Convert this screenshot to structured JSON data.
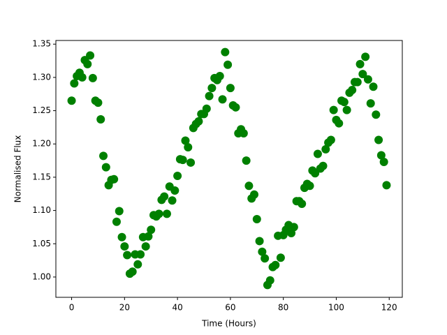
{
  "chart_data": {
    "type": "scatter",
    "x_label": "Time (Hours)",
    "y_label": "Normalised Flux",
    "x": [
      0,
      1,
      2,
      3,
      4,
      5,
      6,
      7,
      8,
      9,
      10,
      11,
      12,
      13,
      14,
      15,
      16,
      17,
      18,
      19,
      20,
      21,
      22,
      23,
      24,
      25,
      26,
      27,
      28,
      29,
      30,
      31,
      32,
      33,
      34,
      35,
      36,
      37,
      38,
      39,
      40,
      41,
      42,
      43,
      44,
      45,
      46,
      47,
      48,
      49,
      50,
      51,
      52,
      53,
      54,
      55,
      56,
      57,
      58,
      59,
      60,
      61,
      62,
      63,
      64,
      65,
      66,
      67,
      68,
      69,
      70,
      71,
      72,
      73,
      74,
      75,
      76,
      77,
      78,
      79,
      80,
      81,
      82,
      83,
      84,
      85,
      86,
      87,
      88,
      89,
      90,
      91,
      92,
      93,
      94,
      95,
      96,
      97,
      98,
      99,
      100,
      101,
      102,
      103,
      104,
      105,
      106,
      107,
      108,
      109,
      110,
      111,
      112,
      113,
      114,
      115,
      116,
      117,
      118,
      119
    ],
    "values": [
      1.265,
      1.291,
      1.302,
      1.307,
      1.3,
      1.326,
      1.32,
      1.333,
      1.299,
      1.265,
      1.262,
      1.237,
      1.182,
      1.165,
      1.138,
      1.146,
      1.147,
      1.083,
      1.099,
      1.06,
      1.046,
      1.033,
      1.005,
      1.008,
      1.034,
      1.019,
      1.034,
      1.06,
      1.046,
      1.061,
      1.071,
      1.093,
      1.091,
      1.095,
      1.116,
      1.121,
      1.095,
      1.136,
      1.115,
      1.13,
      1.152,
      1.177,
      1.176,
      1.205,
      1.195,
      1.172,
      1.224,
      1.23,
      1.234,
      1.245,
      1.245,
      1.253,
      1.272,
      1.284,
      1.299,
      1.296,
      1.302,
      1.267,
      1.338,
      1.319,
      1.284,
      1.258,
      1.255,
      1.216,
      1.222,
      1.216,
      1.175,
      1.137,
      1.118,
      1.124,
      1.087,
      1.054,
      1.038,
      1.028,
      0.988,
      0.995,
      1.015,
      1.018,
      1.062,
      1.029,
      1.063,
      1.071,
      1.078,
      1.066,
      1.075,
      1.114,
      1.114,
      1.11,
      1.134,
      1.14,
      1.137,
      1.16,
      1.156,
      1.185,
      1.163,
      1.167,
      1.192,
      1.202,
      1.206,
      1.251,
      1.236,
      1.231,
      1.265,
      1.263,
      1.251,
      1.277,
      1.281,
      1.293,
      1.293,
      1.32,
      1.305,
      1.331,
      1.297,
      1.261,
      1.286,
      1.244,
      1.206,
      1.183,
      1.173,
      1.138
    ],
    "color": "#008000",
    "xlim": [
      -5.95,
      124.95
    ],
    "ylim": [
      0.9695,
      1.3555
    ],
    "xticks": [
      0,
      20,
      40,
      60,
      80,
      100,
      120
    ],
    "yticks": [
      {
        "value": 1,
        "label": "1.00"
      },
      1.05,
      {
        "value": 1.1,
        "label": "1.10"
      },
      1.15,
      {
        "value": 1.2,
        "label": "1.20"
      },
      1.25,
      {
        "value": 1.3,
        "label": "1.30"
      },
      1.35
    ],
    "grid": false
  }
}
